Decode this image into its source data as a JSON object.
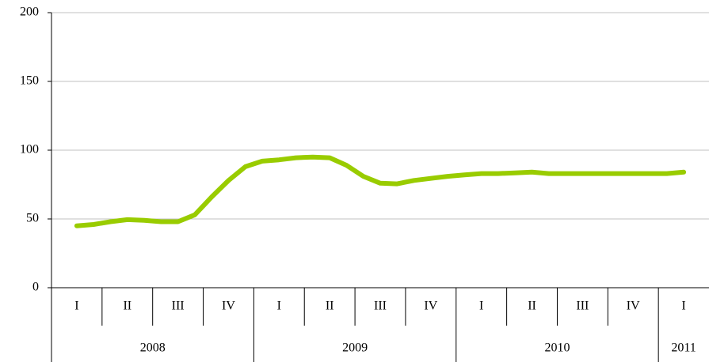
{
  "chart_data": {
    "type": "line",
    "groups": [
      {
        "name": "2008",
        "categories": [
          "I",
          "II",
          "III",
          "IV"
        ]
      },
      {
        "name": "2009",
        "categories": [
          "I",
          "II",
          "III",
          "IV"
        ]
      },
      {
        "name": "2010",
        "categories": [
          "I",
          "II",
          "III",
          "IV"
        ]
      },
      {
        "name": "2011",
        "categories": [
          "I"
        ]
      }
    ],
    "series": [
      {
        "color": "#99cc00",
        "values": [
          45,
          46,
          48,
          49.5,
          49,
          48,
          48,
          53,
          66,
          78,
          88,
          92,
          93,
          94.5,
          95,
          94.5,
          89,
          81,
          76,
          75.5,
          78,
          79.5,
          81,
          82,
          83,
          83,
          83.5,
          84,
          83,
          83,
          83,
          83,
          83,
          83,
          83,
          83,
          84
        ]
      }
    ],
    "ylim": [
      0,
      200
    ],
    "yticks": [
      0,
      50,
      100,
      150,
      200
    ],
    "grid": true
  }
}
